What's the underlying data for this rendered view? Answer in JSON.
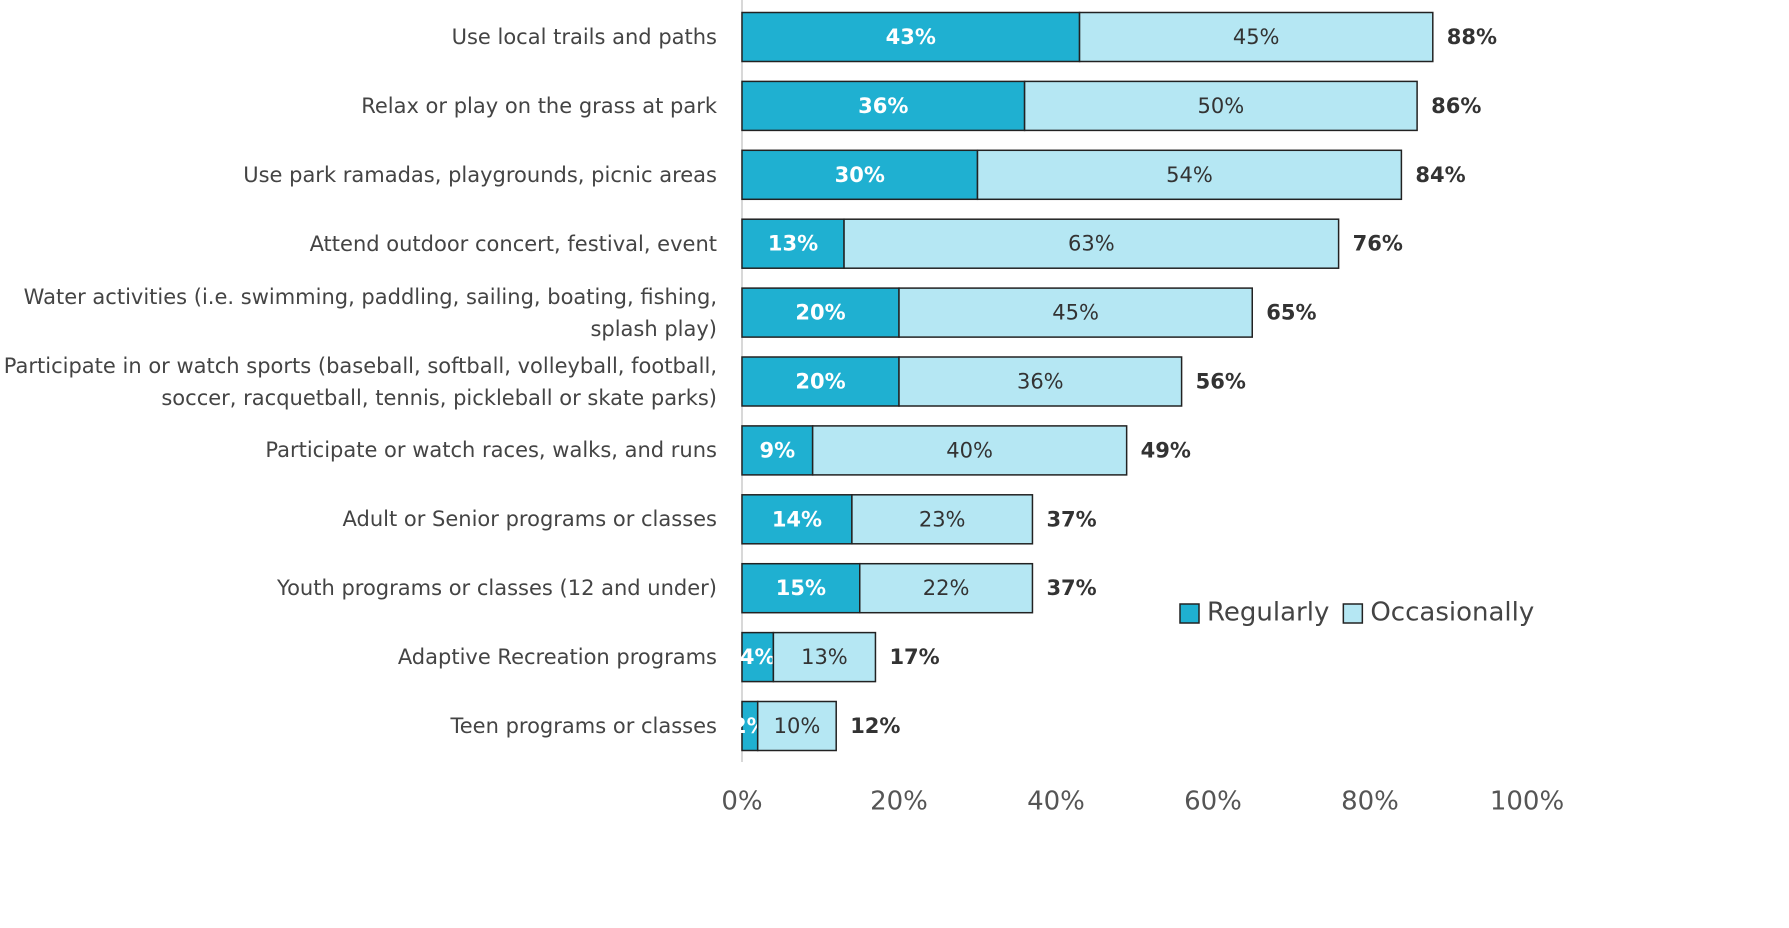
{
  "chart_data": {
    "type": "stacked-barh",
    "categories": [
      "Use local trails and paths",
      "Relax or play on the grass at park",
      "Use park ramadas, playgrounds, picnic areas",
      "Attend outdoor concert, festival, event",
      "Water activities (i.e. swimming, paddling, sailing, boating, fishing, splash play)",
      "Participate in or watch sports (baseball, softball, volleyball, football, soccer, racquetball, tennis, pickleball or skate parks)",
      "Participate or watch races, walks, and runs",
      "Adult or Senior programs or classes",
      "Youth programs or classes (12 and under)",
      "Adaptive Recreation programs",
      "Teen programs or classes"
    ],
    "series": [
      {
        "name": "Regularly",
        "color": "#1fb0d1",
        "values": [
          43,
          36,
          30,
          13,
          20,
          20,
          9,
          14,
          15,
          4,
          2
        ],
        "value_labels": [
          "43%",
          "36%",
          "30%",
          "13%",
          "20%",
          "20%",
          "9%",
          "14%",
          "15%",
          "4%",
          "2%"
        ]
      },
      {
        "name": "Occasionally",
        "color": "#b5e7f3",
        "values": [
          45,
          50,
          54,
          63,
          45,
          36,
          40,
          23,
          22,
          13,
          10
        ],
        "value_labels": [
          "45%",
          "50%",
          "54%",
          "63%",
          "45%",
          "36%",
          "40%",
          "23%",
          "22%",
          "13%",
          "10%"
        ]
      }
    ],
    "totals": [
      88,
      86,
      84,
      76,
      65,
      56,
      49,
      37,
      37,
      17,
      12
    ],
    "total_labels": [
      "88%",
      "86%",
      "84%",
      "76%",
      "65%",
      "56%",
      "49%",
      "37%",
      "37%",
      "17%",
      "12%"
    ],
    "xlim": [
      0,
      100
    ],
    "xticks": [
      {
        "value": 0,
        "label": "0%"
      },
      {
        "value": 20,
        "label": "20%"
      },
      {
        "value": 40,
        "label": "40%"
      },
      {
        "value": 60,
        "label": "60%"
      },
      {
        "value": 80,
        "label": "80%"
      },
      {
        "value": 100,
        "label": "100%"
      }
    ],
    "grid": false,
    "legend": "right"
  }
}
